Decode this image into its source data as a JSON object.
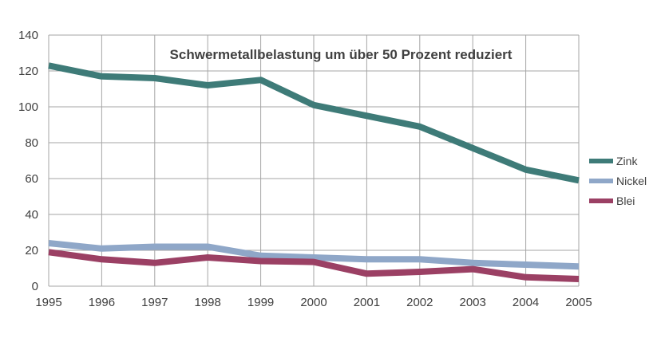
{
  "chart_data": {
    "type": "line",
    "title": "Schwermetallbelastung um über 50 Prozent reduziert",
    "xlabel": "",
    "ylabel": "",
    "x": [
      "1995",
      "1996",
      "1997",
      "1998",
      "1999",
      "2000",
      "2001",
      "2002",
      "2003",
      "2004",
      "2005"
    ],
    "ylim": [
      0,
      140
    ],
    "yticks": [
      "0",
      "20",
      "40",
      "60",
      "80",
      "100",
      "120",
      "140"
    ],
    "grid": true,
    "legend_position": "right",
    "series": [
      {
        "name": "Zink",
        "color": "#3e7b78",
        "values": [
          123,
          117,
          116,
          112,
          115,
          101,
          95,
          89,
          77,
          65,
          59
        ]
      },
      {
        "name": "Nickel",
        "color": "#8fa7c8",
        "values": [
          24,
          21,
          22,
          22,
          17,
          16,
          15,
          15,
          13,
          12,
          11
        ]
      },
      {
        "name": "Blei",
        "color": "#9b4064",
        "values": [
          19,
          15,
          13,
          16,
          14,
          13.5,
          7,
          8,
          9.5,
          5,
          4
        ]
      }
    ]
  }
}
